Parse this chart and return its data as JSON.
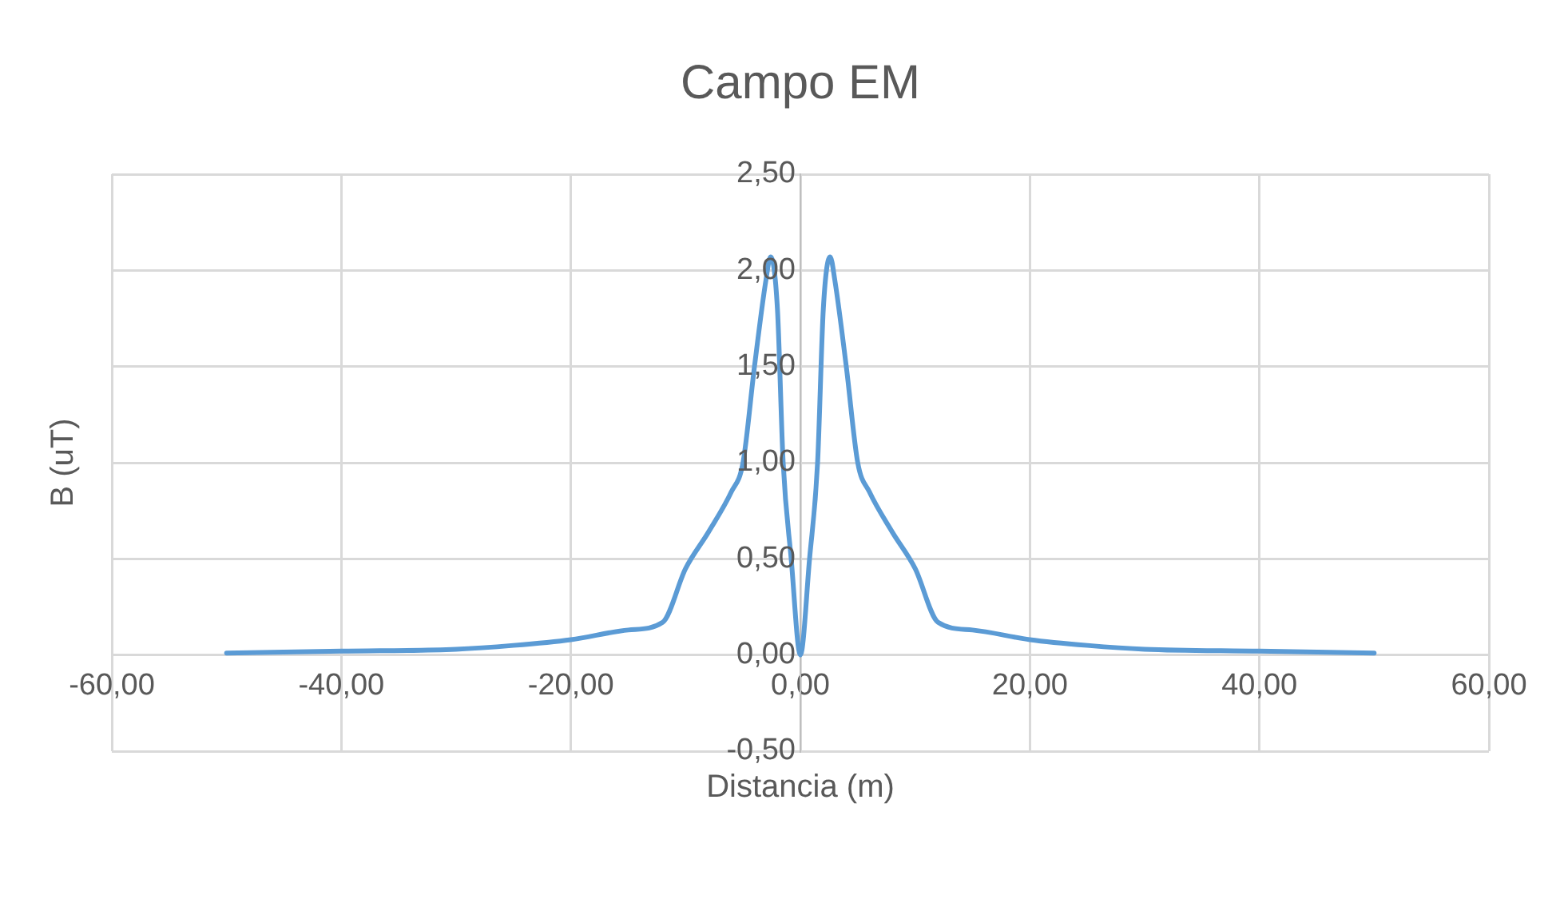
{
  "chart_data": {
    "type": "line",
    "title": "Campo EM",
    "xlabel": "Distancia (m)",
    "ylabel": "B (uT)",
    "x": [
      -50,
      -40,
      -30,
      -25,
      -20,
      -15,
      -12,
      -10,
      -8,
      -6,
      -5,
      -4,
      -3,
      -2.6,
      -2,
      -1.5,
      -0.8,
      0,
      0.8,
      1.5,
      2,
      2.6,
      3,
      4,
      5,
      6,
      8,
      10,
      12,
      15,
      20,
      25,
      30,
      40,
      50
    ],
    "series": [
      {
        "color": "#5b9bd5",
        "values": [
          0.01,
          0.02,
          0.03,
          0.05,
          0.08,
          0.13,
          0.17,
          0.45,
          0.64,
          0.85,
          1.0,
          1.5,
          1.95,
          2.07,
          1.8,
          1.0,
          0.5,
          0,
          0.5,
          1.0,
          1.8,
          2.07,
          1.95,
          1.5,
          1.0,
          0.85,
          0.64,
          0.45,
          0.17,
          0.13,
          0.08,
          0.05,
          0.03,
          0.02,
          0.01
        ]
      }
    ],
    "xlim": [
      -60,
      60
    ],
    "xticks": [
      {
        "value": -60,
        "label": "-60,00"
      },
      {
        "value": -40,
        "label": "-40,00"
      },
      {
        "value": -20,
        "label": "-20,00"
      },
      {
        "value": 0,
        "label": "0,00"
      },
      {
        "value": 20,
        "label": "20,00"
      },
      {
        "value": 40,
        "label": "40,00"
      },
      {
        "value": 60,
        "label": "60,00"
      }
    ],
    "ylim": [
      -0.5,
      2.5
    ],
    "yticks": [
      {
        "value": -0.5,
        "label": "-0,50"
      },
      {
        "value": 0,
        "label": "0,00"
      },
      {
        "value": 0.5,
        "label": "0,50"
      },
      {
        "value": 1,
        "label": "1,00"
      },
      {
        "value": 1.5,
        "label": "1,50"
      },
      {
        "value": 2,
        "label": "2,00"
      },
      {
        "value": 2.5,
        "label": "2,50"
      }
    ],
    "grid": true,
    "legend": false,
    "marker": "none",
    "line_style": "solid"
  }
}
